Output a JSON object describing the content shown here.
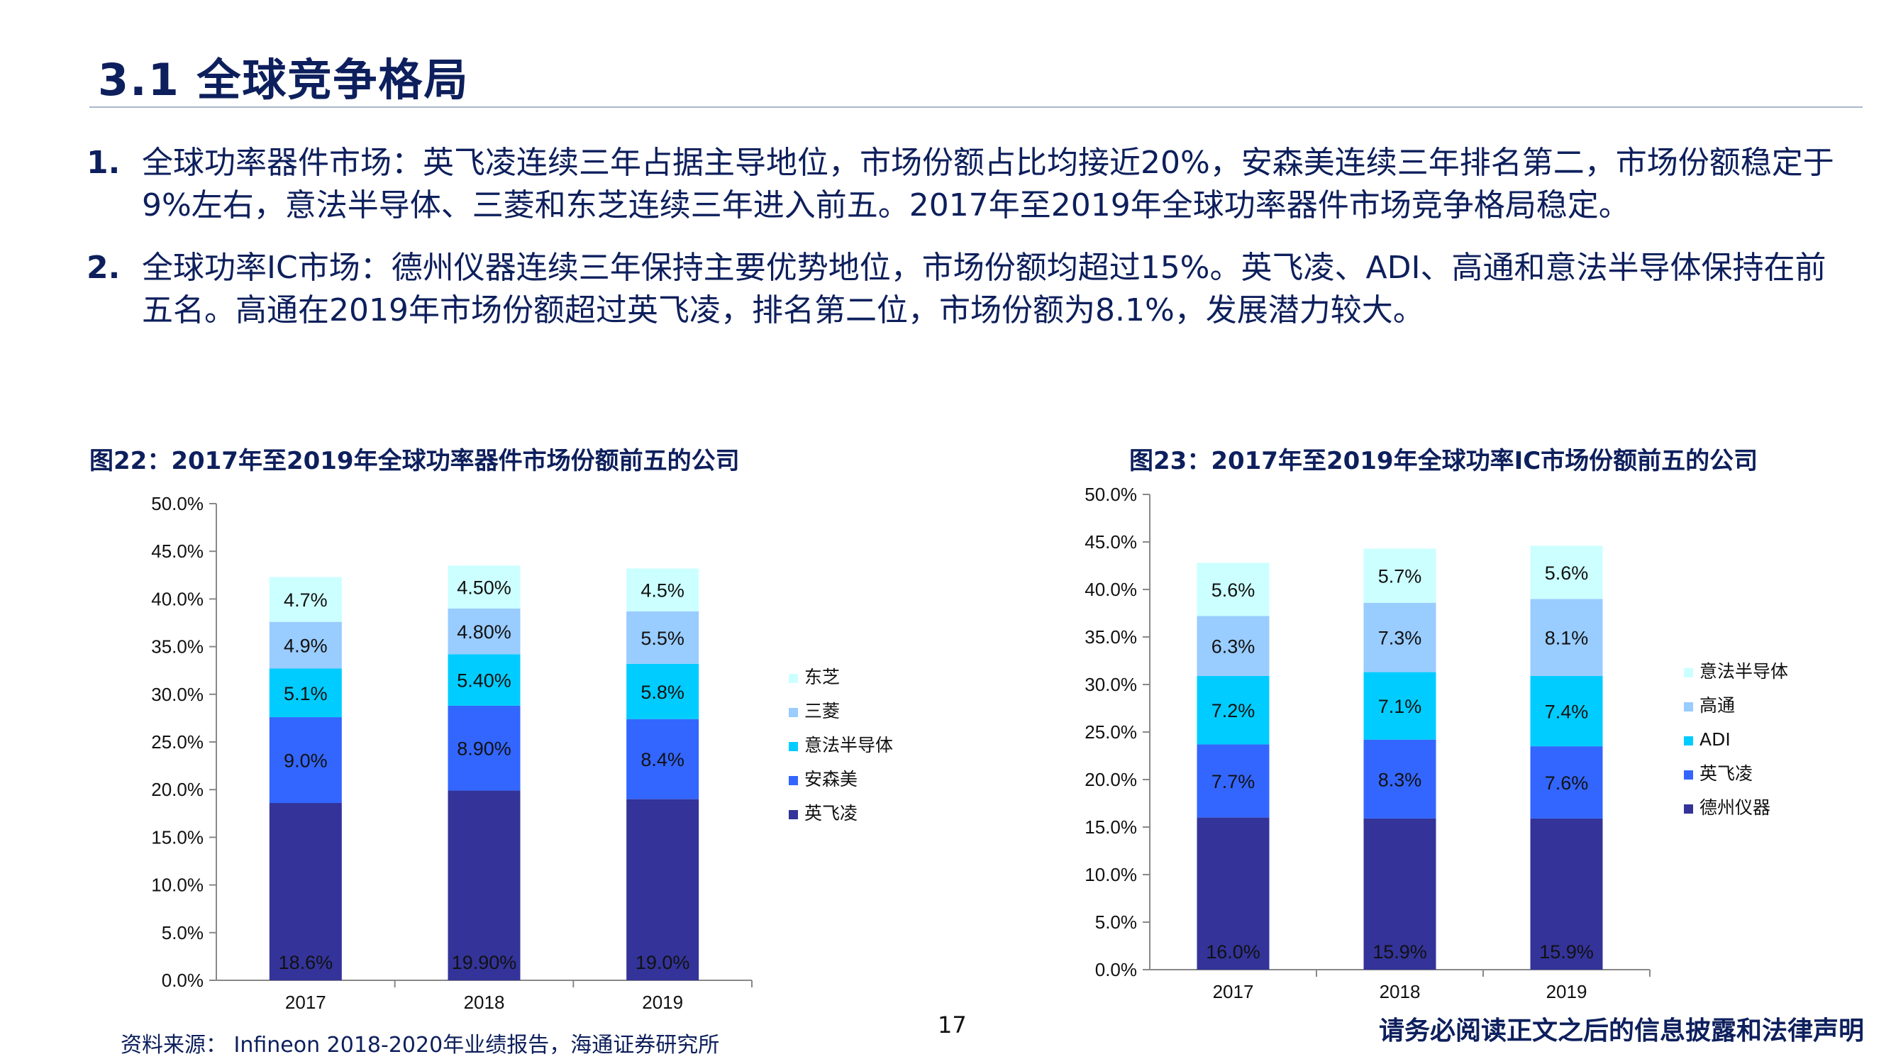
{
  "page": {
    "title": "3.1 全球竞争格局",
    "points": [
      {
        "num": "1.",
        "text": "全球功率器件市场：英飞凌连续三年占据主导地位，市场份额占比均接近20%，安森美连续三年排名第二，市场份额稳定于9%左右，意法半导体、三菱和东芝连续三年进入前五。2017年至2019年全球功率器件市场竞争格局稳定。"
      },
      {
        "num": "2.",
        "text": "全球功率IC市场：德州仪器连续三年保持主要优势地位，市场份额均超过15%。英飞凌、ADI、高通和意法半导体保持在前五名。高通在2019年市场份额超过英飞凌，排名第二位，市场份额为8.1%，发展潜力较大。"
      }
    ],
    "source": "资料来源： Infineon 2018-2020年业绩报告，海通证券研究所",
    "page_number": "17",
    "disclaimer": "请务必阅读正文之后的信息披露和法律声明"
  },
  "chart_data": [
    {
      "type": "bar",
      "stacked": true,
      "title": "图22：2017年至2019年全球功率器件市场份额前五的公司",
      "categories": [
        "2017",
        "2018",
        "2019"
      ],
      "ylim": [
        0,
        50
      ],
      "yticks": [
        "0.0%",
        "5.0%",
        "10.0%",
        "15.0%",
        "20.0%",
        "25.0%",
        "30.0%",
        "35.0%",
        "40.0%",
        "45.0%",
        "50.0%"
      ],
      "legend_position": "right",
      "series": [
        {
          "name": "英飞凌",
          "color": "#333399",
          "values": [
            18.6,
            19.9,
            19.0
          ],
          "labels": [
            "18.6%",
            "19.90%",
            "19.0%"
          ]
        },
        {
          "name": "安森美",
          "color": "#3366ff",
          "values": [
            9.0,
            8.9,
            8.4
          ],
          "labels": [
            "9.0%",
            "8.90%",
            "8.4%"
          ]
        },
        {
          "name": "意法半导体",
          "color": "#00ccff",
          "values": [
            5.1,
            5.4,
            5.8
          ],
          "labels": [
            "5.1%",
            "5.40%",
            "5.8%"
          ]
        },
        {
          "name": "三菱",
          "color": "#99ccff",
          "values": [
            4.9,
            4.8,
            5.5
          ],
          "labels": [
            "4.9%",
            "4.80%",
            "5.5%"
          ]
        },
        {
          "name": "东芝",
          "color": "#ccffff",
          "values": [
            4.7,
            4.5,
            4.5
          ],
          "labels": [
            "4.7%",
            "4.50%",
            "4.5%"
          ]
        }
      ]
    },
    {
      "type": "bar",
      "stacked": true,
      "title": "图23：2017年至2019年全球功率IC市场份额前五的公司",
      "categories": [
        "2017",
        "2018",
        "2019"
      ],
      "ylim": [
        0,
        50
      ],
      "yticks": [
        "0.0%",
        "5.0%",
        "10.0%",
        "15.0%",
        "20.0%",
        "25.0%",
        "30.0%",
        "35.0%",
        "40.0%",
        "45.0%",
        "50.0%"
      ],
      "legend_position": "right",
      "series": [
        {
          "name": "德州仪器",
          "color": "#333399",
          "values": [
            16.0,
            15.9,
            15.9
          ],
          "labels": [
            "16.0%",
            "15.9%",
            "15.9%"
          ]
        },
        {
          "name": "英飞凌",
          "color": "#3366ff",
          "values": [
            7.7,
            8.3,
            7.6
          ],
          "labels": [
            "7.7%",
            "8.3%",
            "7.6%"
          ]
        },
        {
          "name": "ADI",
          "color": "#00ccff",
          "values": [
            7.2,
            7.1,
            7.4
          ],
          "labels": [
            "7.2%",
            "7.1%",
            "7.4%"
          ]
        },
        {
          "name": "高通",
          "color": "#99ccff",
          "values": [
            6.3,
            7.3,
            8.1
          ],
          "labels": [
            "6.3%",
            "7.3%",
            "8.1%"
          ]
        },
        {
          "name": "意法半导体",
          "color": "#ccffff",
          "values": [
            5.6,
            5.7,
            5.6
          ],
          "labels": [
            "5.6%",
            "5.7%",
            "5.6%"
          ]
        }
      ]
    }
  ]
}
